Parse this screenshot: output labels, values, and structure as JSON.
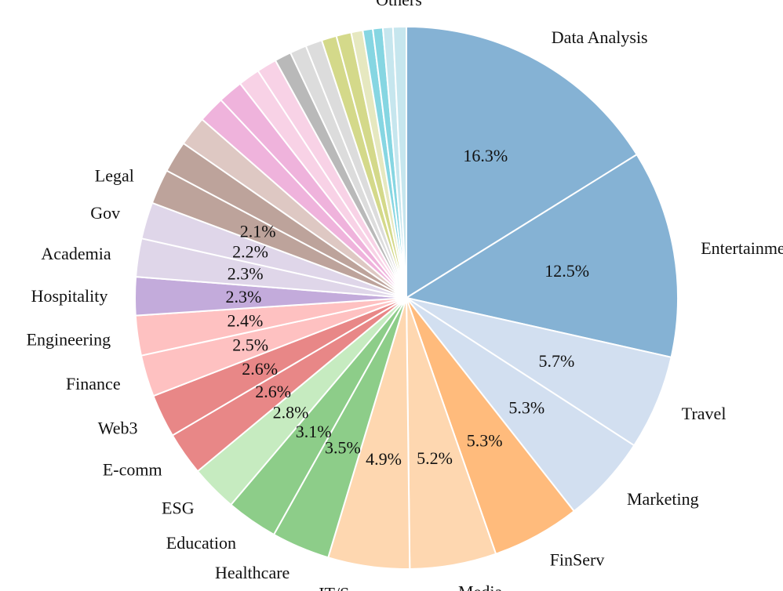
{
  "chart_data": {
    "type": "pie",
    "start_angle_deg": 90,
    "direction": "clockwise",
    "label_threshold_pct": 2.0,
    "slices": [
      {
        "label": "Data Analysis",
        "value": 16.3,
        "pct_label": "16.3%",
        "color": "#85b2d4"
      },
      {
        "label": "Entertainment",
        "value": 12.5,
        "pct_label": "12.5%",
        "color": "#85b2d4"
      },
      {
        "label": "Travel",
        "value": 5.7,
        "pct_label": "5.7%",
        "color": "#d2dff0"
      },
      {
        "label": "Marketing",
        "value": 5.3,
        "pct_label": "5.3%",
        "color": "#d2dff0"
      },
      {
        "label": "FinServ",
        "value": 5.3,
        "pct_label": "5.3%",
        "color": "#ffbb7c"
      },
      {
        "label": "Media",
        "value": 5.2,
        "pct_label": "5.2%",
        "color": "#fed7b0"
      },
      {
        "label": "IT/Sec",
        "value": 4.9,
        "pct_label": "4.9%",
        "color": "#fed7b0"
      },
      {
        "label": "Healthcare",
        "value": 3.5,
        "pct_label": "3.5%",
        "color": "#8dcd89"
      },
      {
        "label": "Education",
        "value": 3.1,
        "pct_label": "3.1%",
        "color": "#8dcd89"
      },
      {
        "label": "ESG",
        "value": 2.8,
        "pct_label": "2.8%",
        "color": "#c6ebc0"
      },
      {
        "label": "E-comm",
        "value": 2.6,
        "pct_label": "2.6%",
        "color": "#e88787"
      },
      {
        "label": "Web3",
        "value": 2.6,
        "pct_label": "2.6%",
        "color": "#e88787"
      },
      {
        "label": "Finance",
        "value": 2.5,
        "pct_label": "2.5%",
        "color": "#fec1c1"
      },
      {
        "label": "Engineering",
        "value": 2.4,
        "pct_label": "2.4%",
        "color": "#fec1c1"
      },
      {
        "label": "Hospitality",
        "value": 2.3,
        "pct_label": "2.3%",
        "color": "#c3abdb"
      },
      {
        "label": "Academia",
        "value": 2.3,
        "pct_label": "2.3%",
        "color": "#dfd6e9"
      },
      {
        "label": "Gov",
        "value": 2.2,
        "pct_label": "2.2%",
        "color": "#dfd6e9"
      },
      {
        "label": "Legal",
        "value": 2.1,
        "pct_label": "2.1%",
        "color": "#bda39b"
      },
      {
        "label": "",
        "value": 1.9,
        "pct_label": "",
        "color": "#bda39b"
      },
      {
        "label": "",
        "value": 1.8,
        "pct_label": "",
        "color": "#dec8c3"
      },
      {
        "label": "",
        "value": 1.6,
        "pct_label": "",
        "color": "#efb3dc"
      },
      {
        "label": "",
        "value": 1.5,
        "pct_label": "",
        "color": "#efb3dc"
      },
      {
        "label": "",
        "value": 1.3,
        "pct_label": "",
        "color": "#f8d2e6"
      },
      {
        "label": "",
        "value": 1.2,
        "pct_label": "",
        "color": "#f8d2e6"
      },
      {
        "label": "",
        "value": 1.0,
        "pct_label": "",
        "color": "#b9b9b9"
      },
      {
        "label": "",
        "value": 1.0,
        "pct_label": "",
        "color": "#dcdcdc"
      },
      {
        "label": "",
        "value": 1.0,
        "pct_label": "",
        "color": "#dcdcdc"
      },
      {
        "label": "",
        "value": 0.9,
        "pct_label": "",
        "color": "#d4d98a"
      },
      {
        "label": "",
        "value": 0.9,
        "pct_label": "",
        "color": "#d4d98a"
      },
      {
        "label": "",
        "value": 0.7,
        "pct_label": "",
        "color": "#e6e8c0"
      },
      {
        "label": "",
        "value": 0.6,
        "pct_label": "",
        "color": "#86d6e2"
      },
      {
        "label": "",
        "value": 0.6,
        "pct_label": "",
        "color": "#86d6e2"
      },
      {
        "label": "",
        "value": 0.6,
        "pct_label": "",
        "color": "#c6e6ee"
      },
      {
        "label": "Others",
        "value": 0.8,
        "pct_label": "",
        "color": "#c6e6ee"
      }
    ]
  }
}
